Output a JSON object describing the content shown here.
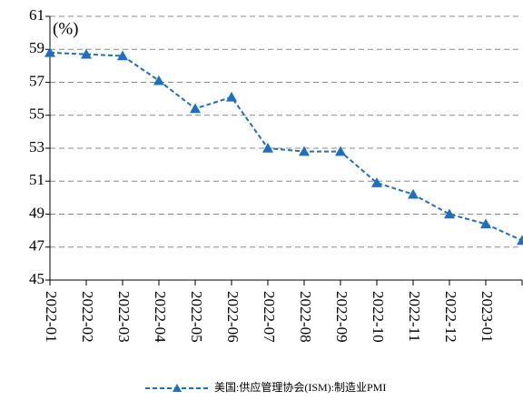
{
  "chart_data": {
    "type": "line",
    "annotation": "(%)",
    "categories": [
      "2022-01",
      "2022-02",
      "2022-03",
      "2022-04",
      "2022-05",
      "2022-06",
      "2022-07",
      "2022-08",
      "2022-09",
      "2022-10",
      "2022-11",
      "2022-12",
      "2023-01",
      null
    ],
    "series": [
      {
        "name": "美国:供应管理协会(ISM):制造业PMI",
        "color": "#1e6fc0",
        "values": [
          58.8,
          58.7,
          58.6,
          57.1,
          55.4,
          56.1,
          53.0,
          52.8,
          52.8,
          50.9,
          50.2,
          49.0,
          48.4,
          47.4
        ]
      }
    ],
    "ylim": [
      45,
      61
    ],
    "yticks": [
      45,
      47,
      49,
      51,
      53,
      55,
      57,
      59,
      61
    ],
    "grid": true,
    "legend": "bottom"
  }
}
